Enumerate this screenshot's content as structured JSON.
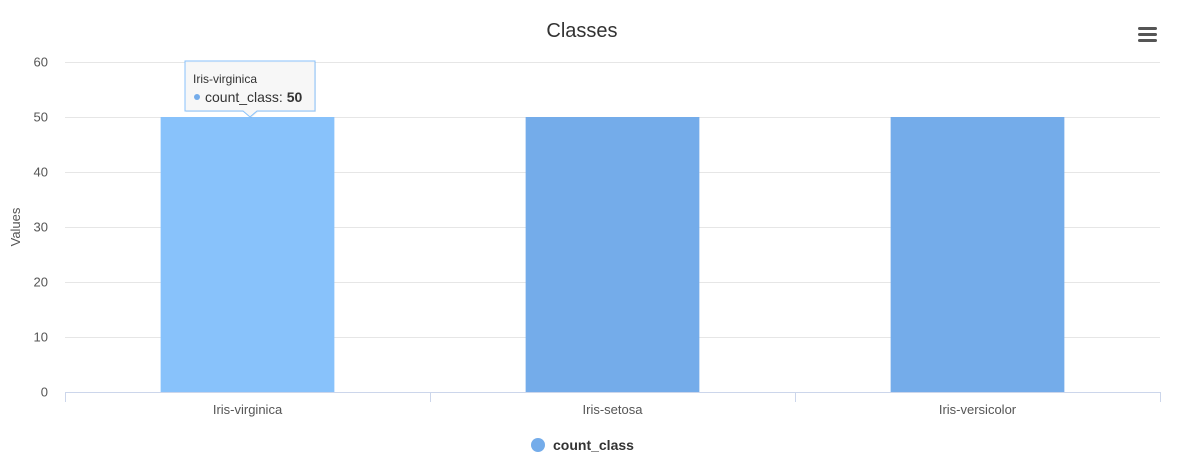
{
  "chart_data": {
    "type": "bar",
    "title": "Classes",
    "xlabel": "",
    "ylabel": "Values",
    "categories": [
      "Iris-virginica",
      "Iris-setosa",
      "Iris-versicolor"
    ],
    "series": [
      {
        "name": "count_class",
        "values": [
          50,
          50,
          50
        ],
        "color": "#74acea"
      }
    ],
    "ylim": [
      0,
      60
    ],
    "yticks": [
      0,
      10,
      20,
      30,
      40,
      50,
      60
    ],
    "grid": true,
    "legend_position": "bottom-center",
    "highlight_color": "#88c2fb",
    "tooltip": {
      "category": "Iris-virginica",
      "series": "count_class",
      "value": "50",
      "separator": ":"
    }
  },
  "menu_icon": "hamburger-menu-icon"
}
